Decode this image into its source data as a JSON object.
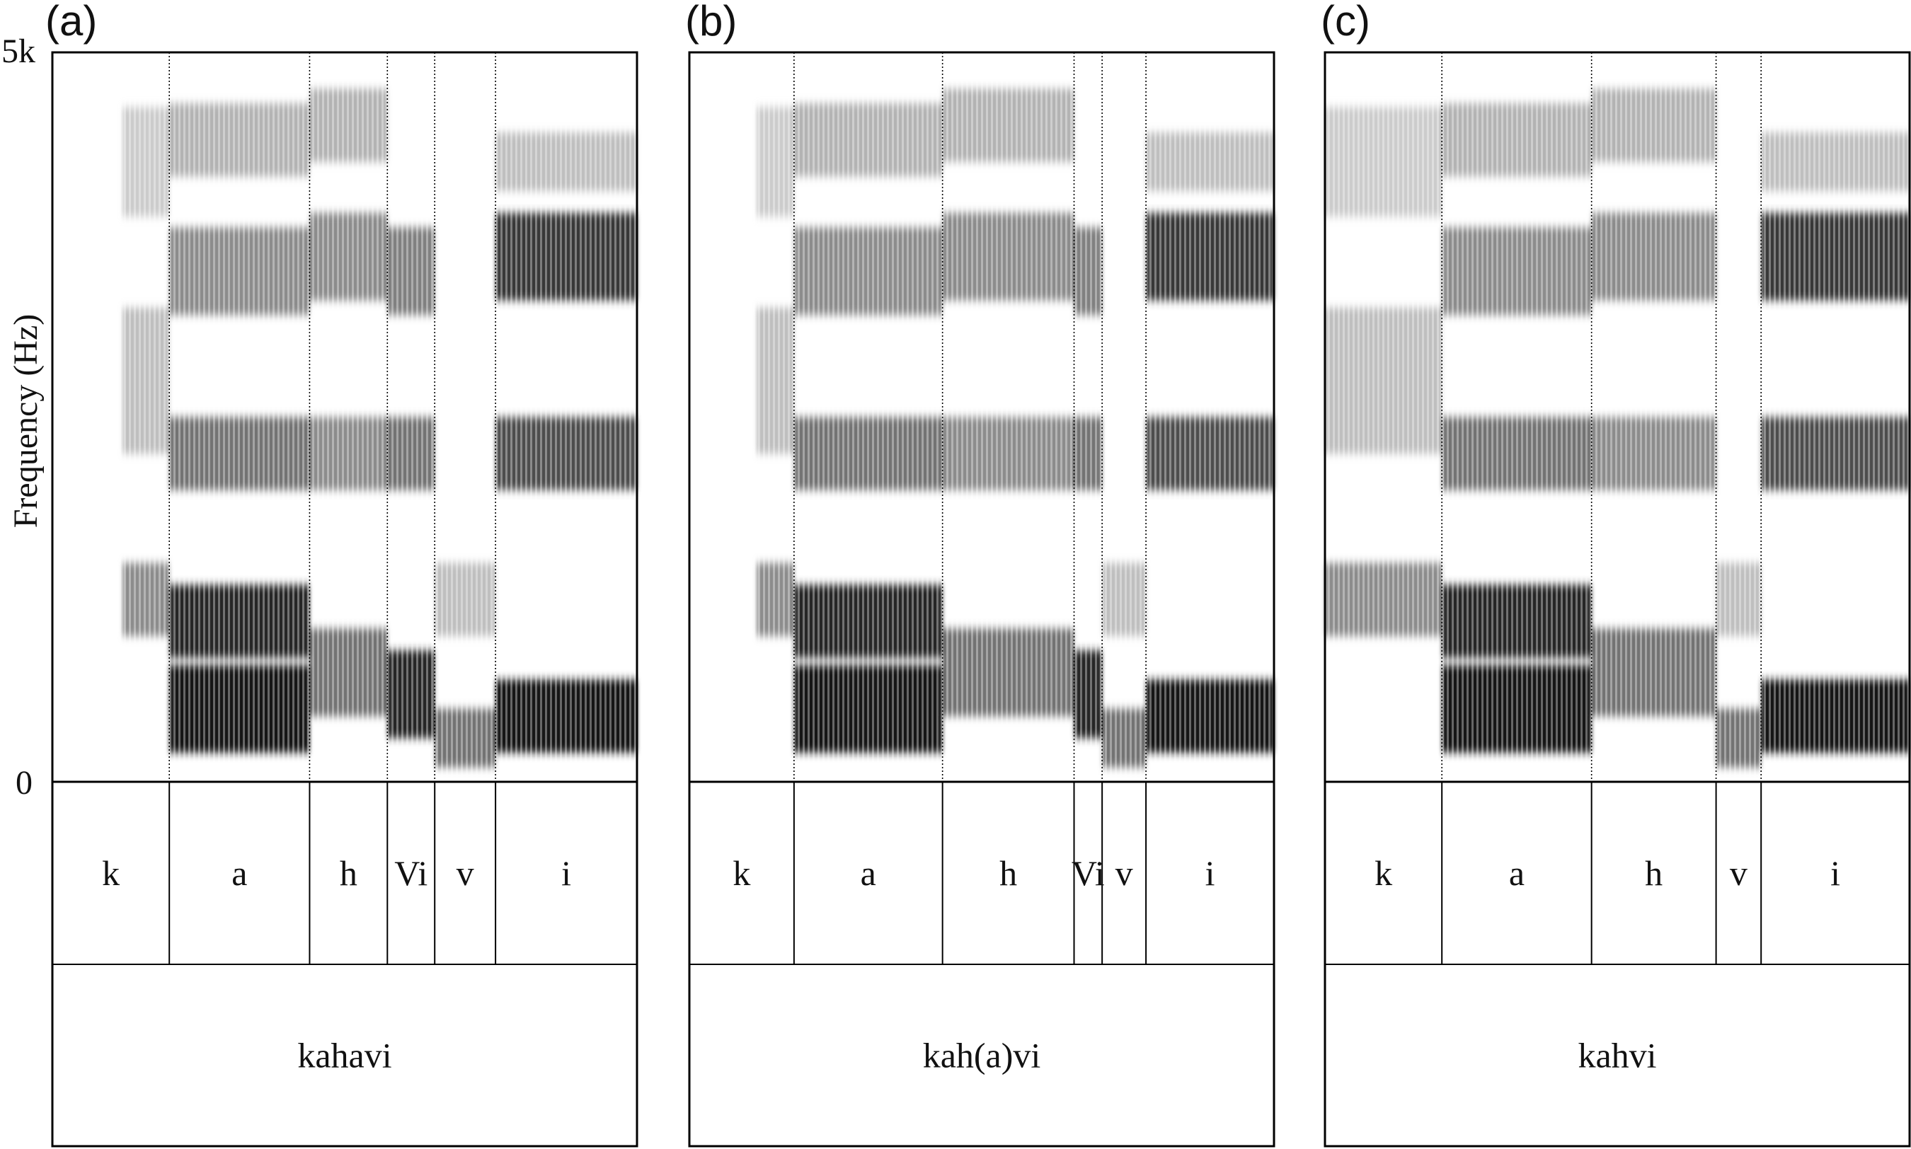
{
  "y_axis": {
    "label": "Frequency (Hz)",
    "top_tick": "5k",
    "bottom_tick": "0"
  },
  "panels": [
    {
      "id": "a",
      "label": "(a)",
      "word": "kahavi",
      "segments": [
        {
          "label": "k",
          "start": 0.0,
          "end": 0.2
        },
        {
          "label": "a",
          "start": 0.2,
          "end": 0.44
        },
        {
          "label": "h",
          "start": 0.44,
          "end": 0.573
        },
        {
          "label": "Vi",
          "start": 0.573,
          "end": 0.654
        },
        {
          "label": "v",
          "start": 0.654,
          "end": 0.758
        },
        {
          "label": "i",
          "start": 0.758,
          "end": 1.0
        }
      ],
      "voicing_start": 0.12
    },
    {
      "id": "b",
      "label": "(b)",
      "word": "kah(a)vi",
      "segments": [
        {
          "label": "k",
          "start": 0.0,
          "end": 0.179
        },
        {
          "label": "a",
          "start": 0.179,
          "end": 0.433
        },
        {
          "label": "h",
          "start": 0.433,
          "end": 0.658
        },
        {
          "label": "Vi",
          "start": 0.658,
          "end": 0.706
        },
        {
          "label": "v",
          "start": 0.706,
          "end": 0.781
        },
        {
          "label": "i",
          "start": 0.781,
          "end": 1.0
        }
      ],
      "voicing_start": 0.115
    },
    {
      "id": "c",
      "label": "(c)",
      "word": "kahvi",
      "segments": [
        {
          "label": "k",
          "start": 0.0,
          "end": 0.2
        },
        {
          "label": "a",
          "start": 0.2,
          "end": 0.456
        },
        {
          "label": "h",
          "start": 0.456,
          "end": 0.669
        },
        {
          "label": "v",
          "start": 0.669,
          "end": 0.746
        },
        {
          "label": "i",
          "start": 0.746,
          "end": 1.0
        }
      ],
      "voicing_start": 0.0
    }
  ]
}
